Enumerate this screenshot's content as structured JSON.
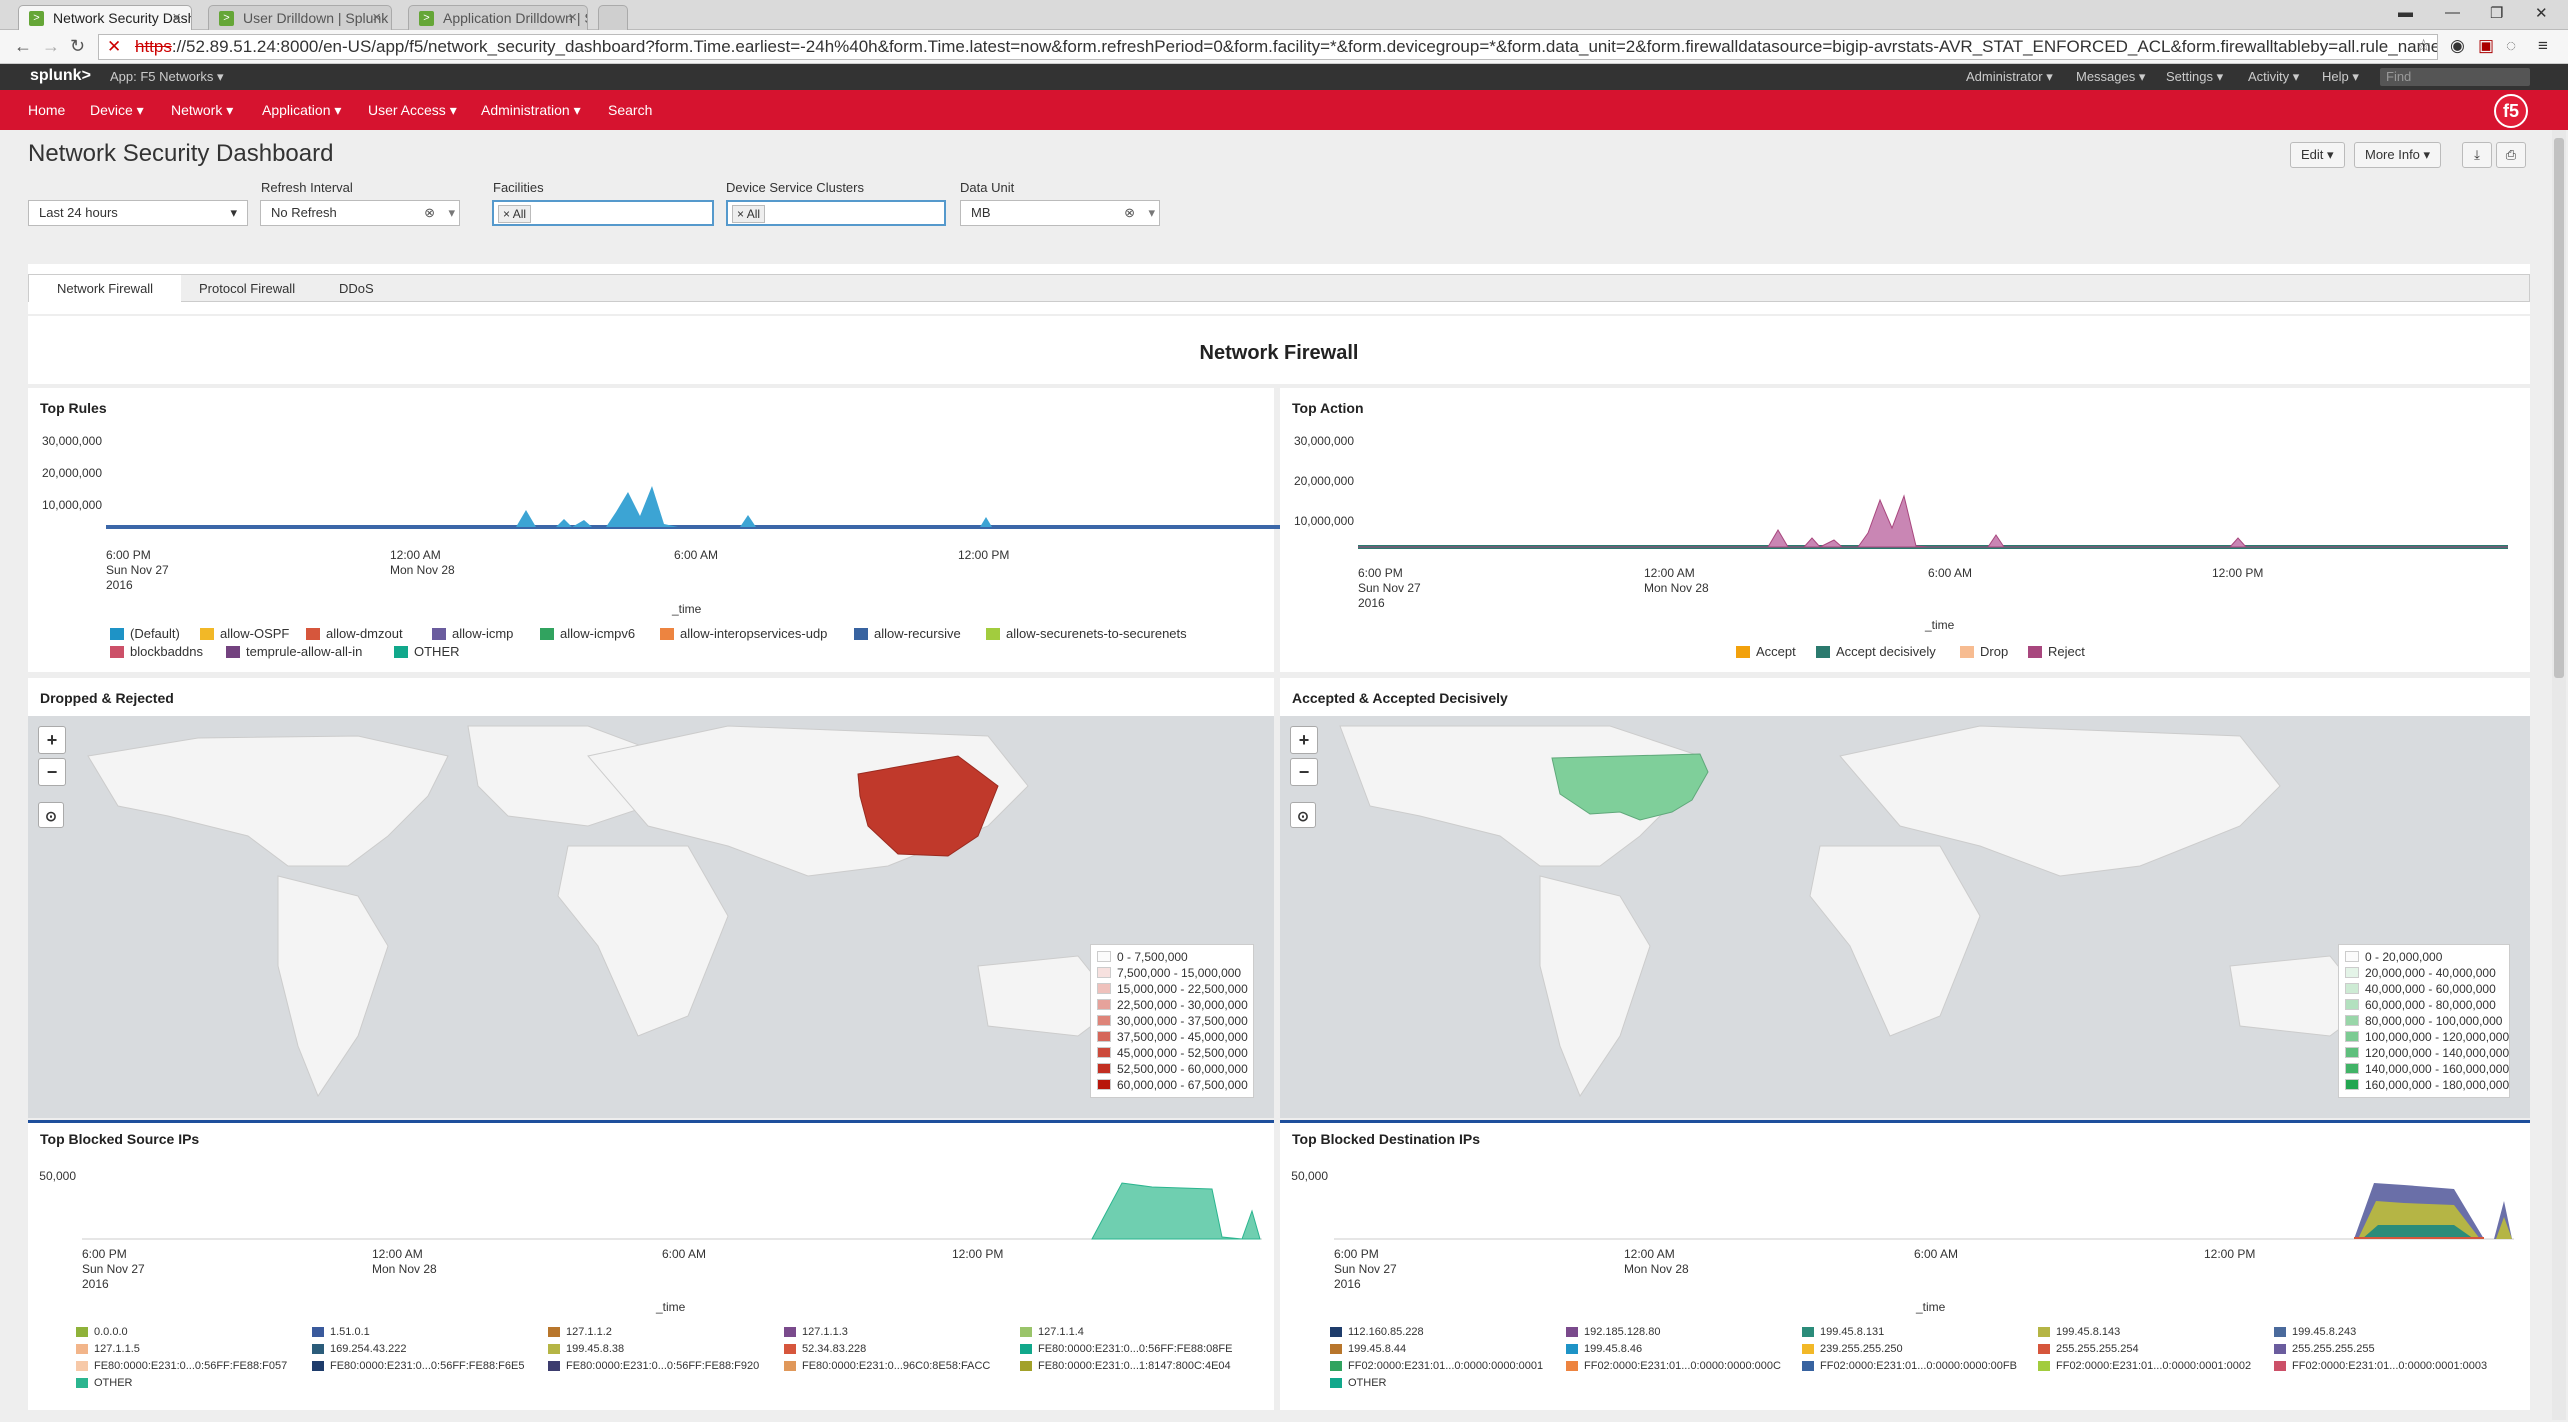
{
  "browser": {
    "tabs": [
      {
        "label": "Network Security Dashbo"
      },
      {
        "label": "User Drilldown | Splunk"
      },
      {
        "label": "Application Drilldown | Sp"
      }
    ],
    "url_scheme": "https",
    "url_rest": "://52.89.51.24:8000/en-US/app/f5/network_security_dashboard?form.Time.earliest=-24h%40h&form.Time.latest=now&form.refreshPeriod=0&form.facility=*&form.devicegroup=*&form.data_unit=2&form.firewalldatasource=bigip-avrstats-AVR_STAT_ENFORCED_ACL&form.firewalltableby=all.rule_name&form.firewalltab"
  },
  "splunkbar": {
    "logo": "splunk>",
    "app": "App: F5 Networks",
    "right": [
      "Administrator",
      "Messages",
      "Settings",
      "Activity",
      "Help"
    ],
    "find_placeholder": "Find"
  },
  "appnav": {
    "items": [
      "Home",
      "Device",
      "Network",
      "Application",
      "User Access",
      "Administration",
      "Search"
    ],
    "logo": "f5"
  },
  "header": {
    "title": "Network Security Dashboard",
    "edit": "Edit",
    "more_info": "More Info"
  },
  "inputs": {
    "time": {
      "label": "",
      "value": "Last 24 hours"
    },
    "refresh": {
      "label": "Refresh Interval",
      "value": "No Refresh"
    },
    "facilities": {
      "label": "Facilities",
      "token": "All"
    },
    "clusters": {
      "label": "Device Service Clusters",
      "token": "All"
    },
    "unit": {
      "label": "Data Unit",
      "value": "MB"
    }
  },
  "tabs": [
    "Network Firewall",
    "Protocol Firewall",
    "DDoS"
  ],
  "banner": "Network Firewall",
  "colors": {
    "accent": "#d6132f",
    "tab_active": "#ffffff",
    "map_dropped": "#c0392b",
    "map_accepted": "#7fcf9a"
  },
  "panels": {
    "top_rules": {
      "title": "Top Rules",
      "yticks": [
        "30,000,000",
        "20,000,000",
        "10,000,000"
      ],
      "xticks": [
        [
          "6:00 PM",
          "Sun Nov 27",
          "2016"
        ],
        [
          "12:00 AM",
          "Mon Nov 28",
          ""
        ],
        [
          "6:00 AM",
          "",
          ""
        ],
        [
          "12:00 PM",
          "",
          ""
        ]
      ],
      "xaxis": "_time",
      "legend": [
        {
          "name": "(Default)",
          "color": "#1e93c6"
        },
        {
          "name": "allow-OSPF",
          "color": "#f2b827"
        },
        {
          "name": "allow-dmzout",
          "color": "#d6563c"
        },
        {
          "name": "allow-icmp",
          "color": "#6a5c9e"
        },
        {
          "name": "allow-icmpv6",
          "color": "#31a35f"
        },
        {
          "name": "allow-interopservices-udp",
          "color": "#ed8440"
        },
        {
          "name": "allow-recursive",
          "color": "#3863a0"
        },
        {
          "name": "allow-securenets-to-securenets",
          "color": "#a2cc3e"
        },
        {
          "name": "blockbaddns",
          "color": "#cc5068"
        },
        {
          "name": "temprule-allow-all-in",
          "color": "#73427f"
        },
        {
          "name": "OTHER",
          "color": "#11a88b"
        }
      ]
    },
    "top_action": {
      "title": "Top Action",
      "yticks": [
        "30,000,000",
        "20,000,000",
        "10,000,000"
      ],
      "xticks": [
        [
          "6:00 PM",
          "Sun Nov 27",
          "2016"
        ],
        [
          "12:00 AM",
          "Mon Nov 28",
          ""
        ],
        [
          "6:00 AM",
          "",
          ""
        ],
        [
          "12:00 PM",
          "",
          ""
        ]
      ],
      "xaxis": "_time",
      "legend": [
        {
          "name": "Accept",
          "color": "#f2a10c"
        },
        {
          "name": "Accept decisively",
          "color": "#2b7a6e"
        },
        {
          "name": "Drop",
          "color": "#f7bc91"
        },
        {
          "name": "Reject",
          "color": "#a8477e"
        }
      ]
    },
    "dropped": {
      "title": "Dropped & Rejected",
      "legend": [
        {
          "label": "0 - 7,500,000",
          "color": "#fbfbfb"
        },
        {
          "label": "7,500,000 - 15,000,000",
          "color": "#f7e1df"
        },
        {
          "label": "15,000,000 - 22,500,000",
          "color": "#efc1bc"
        },
        {
          "label": "22,500,000 - 30,000,000",
          "color": "#e6a29b"
        },
        {
          "label": "30,000,000 - 37,500,000",
          "color": "#de8479"
        },
        {
          "label": "37,500,000 - 45,000,000",
          "color": "#d5675a"
        },
        {
          "label": "45,000,000 - 52,500,000",
          "color": "#cc4a3b"
        },
        {
          "label": "52,500,000 - 60,000,000",
          "color": "#c22f22"
        },
        {
          "label": "60,000,000 - 67,500,000",
          "color": "#b8160b"
        }
      ]
    },
    "accepted": {
      "title": "Accepted & Accepted Decisively",
      "legend": [
        {
          "label": "0 - 20,000,000",
          "color": "#fbfbfb"
        },
        {
          "label": "20,000,000 - 40,000,000",
          "color": "#e4f4e8"
        },
        {
          "label": "40,000,000 - 60,000,000",
          "color": "#cdebd4"
        },
        {
          "label": "60,000,000 - 80,000,000",
          "color": "#b3e1bf"
        },
        {
          "label": "80,000,000 - 100,000,000",
          "color": "#99d6a9"
        },
        {
          "label": "100,000,000 - 120,000,000",
          "color": "#7ccb93"
        },
        {
          "label": "120,000,000 - 140,000,000",
          "color": "#5fbf7d"
        },
        {
          "label": "140,000,000 - 160,000,000",
          "color": "#41b367"
        },
        {
          "label": "160,000,000 - 180,000,000",
          "color": "#23a651"
        }
      ]
    },
    "src_ips": {
      "title": "Top Blocked Source IPs",
      "yticks": [
        "50,000"
      ],
      "xticks": [
        [
          "6:00 PM",
          "Sun Nov 27",
          "2016"
        ],
        [
          "12:00 AM",
          "Mon Nov 28",
          ""
        ],
        [
          "6:00 AM",
          "",
          ""
        ],
        [
          "12:00 PM",
          "",
          ""
        ]
      ],
      "xaxis": "_time",
      "legend": [
        {
          "name": "0.0.0.0",
          "color": "#8fb23a"
        },
        {
          "name": "1.51.0.1",
          "color": "#3a5a9c"
        },
        {
          "name": "127.1.1.2",
          "color": "#b8762c"
        },
        {
          "name": "127.1.1.3",
          "color": "#7a4a8c"
        },
        {
          "name": "127.1.1.4",
          "color": "#9ac46a"
        },
        {
          "name": "127.1.1.5",
          "color": "#f2b58a"
        },
        {
          "name": "169.254.43.222",
          "color": "#2b5c7a"
        },
        {
          "name": "199.45.8.38",
          "color": "#b5b545"
        },
        {
          "name": "52.34.83.228",
          "color": "#d6563c"
        },
        {
          "name": "FE80:0000:E231:0...0:56FF:FE88:08FE",
          "color": "#11a88b"
        },
        {
          "name": "FE80:0000:E231:0...0:56FF:FE88:F057",
          "color": "#f7c9a8"
        },
        {
          "name": "FE80:0000:E231:0...0:56FF:FE88:F6E5",
          "color": "#1e3c6b"
        },
        {
          "name": "FE80:0000:E231:0...0:56FF:FE88:F920",
          "color": "#3c3c6e"
        },
        {
          "name": "FE80:0000:E231:0...96C0:8E58:FACC",
          "color": "#e0985a"
        },
        {
          "name": "FE80:0000:E231:0...1:8147:800C:4E04",
          "color": "#a2a12a"
        },
        {
          "name": "OTHER",
          "color": "#2bb58f"
        }
      ]
    },
    "dst_ips": {
      "title": "Top Blocked Destination IPs",
      "yticks": [
        "50,000"
      ],
      "xticks": [
        [
          "6:00 PM",
          "Sun Nov 27",
          "2016"
        ],
        [
          "12:00 AM",
          "Mon Nov 28",
          ""
        ],
        [
          "6:00 AM",
          "",
          ""
        ],
        [
          "12:00 PM",
          "",
          ""
        ]
      ],
      "xaxis": "_time",
      "legend": [
        {
          "name": "112.160.85.228",
          "color": "#1e3c6b"
        },
        {
          "name": "192.185.128.80",
          "color": "#7a4a8c"
        },
        {
          "name": "199.45.8.131",
          "color": "#2b8c7a"
        },
        {
          "name": "199.45.8.143",
          "color": "#b5b545"
        },
        {
          "name": "199.45.8.243",
          "color": "#4a6a9c"
        },
        {
          "name": "199.45.8.44",
          "color": "#b8762c"
        },
        {
          "name": "199.45.8.46",
          "color": "#1e93c6"
        },
        {
          "name": "239.255.255.250",
          "color": "#f2b827"
        },
        {
          "name": "255.255.255.254",
          "color": "#d6563c"
        },
        {
          "name": "255.255.255.255",
          "color": "#6a5c9e"
        },
        {
          "name": "FF02:0000:E231:01...0:0000:0000:0001",
          "color": "#31a35f"
        },
        {
          "name": "FF02:0000:E231:01...0:0000:0000:000C",
          "color": "#ed8440"
        },
        {
          "name": "FF02:0000:E231:01...0:0000:0000:00FB",
          "color": "#3863a0"
        },
        {
          "name": "FF02:0000:E231:01...0:0000:0001:0002",
          "color": "#a2cc3e"
        },
        {
          "name": "FF02:0000:E231:01...0:0000:0001:0003",
          "color": "#cc5068"
        },
        {
          "name": "OTHER",
          "color": "#11a88b"
        }
      ]
    }
  }
}
